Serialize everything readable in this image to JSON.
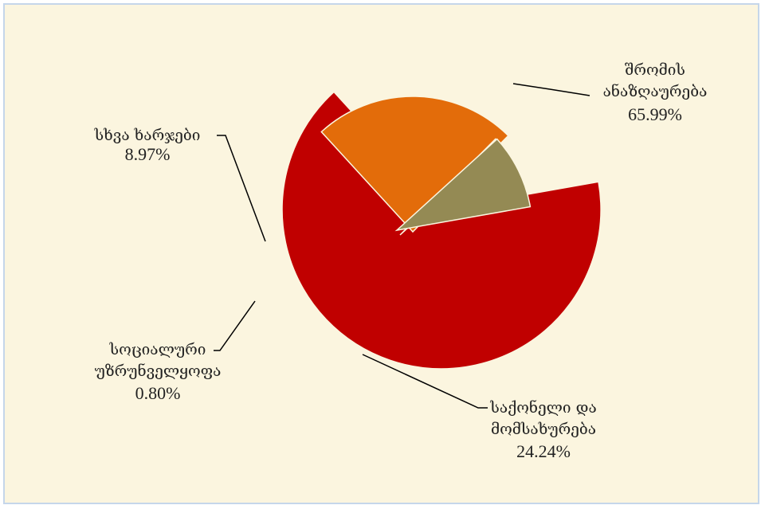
{
  "chart_data": {
    "type": "pie",
    "title": "",
    "exploded": true,
    "slices": [
      {
        "label": [
          "შრომის",
          "ანაზღაურება"
        ],
        "percent_label": "65.99%",
        "value": 65.99,
        "color": "#c00000"
      },
      {
        "label": [
          "საქონელი და",
          "მომსახურება"
        ],
        "percent_label": "24.24%",
        "value": 24.24,
        "color": "#e36c0a"
      },
      {
        "label": [
          "სოციალური",
          "უზრუნველყოფა"
        ],
        "percent_label": "0.80%",
        "value": 0.8,
        "color": "#9bbb59"
      },
      {
        "label": [
          "სხვა ხარჯები"
        ],
        "percent_label": "8.97%",
        "value": 8.97,
        "color": "#948a54"
      }
    ]
  }
}
